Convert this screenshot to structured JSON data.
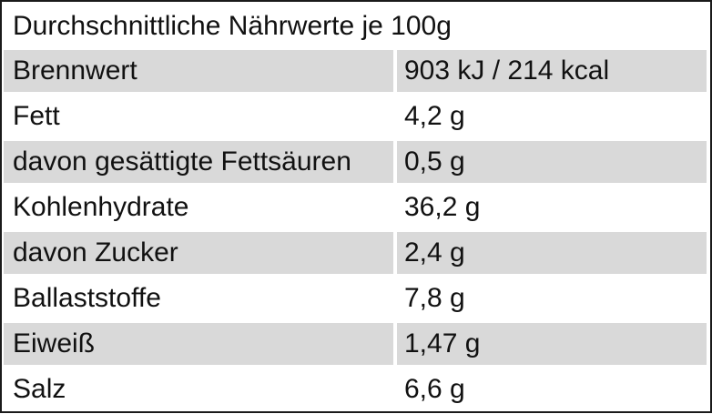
{
  "table": {
    "title": "Durchschnittliche Nährwerte je 100g",
    "rows": [
      {
        "label": "Brennwert",
        "value": "903 kJ / 214 kcal"
      },
      {
        "label": "Fett",
        "value": "4,2 g"
      },
      {
        "label": "davon gesättigte Fettsäuren",
        "value": "0,5 g"
      },
      {
        "label": "Kohlenhydrate",
        "value": "36,2 g"
      },
      {
        "label": "davon Zucker",
        "value": "2,4 g"
      },
      {
        "label": "Ballaststoffe",
        "value": "7,8 g"
      },
      {
        "label": "Eiweiß",
        "value": "1,47 g"
      },
      {
        "label": "Salz",
        "value": "6,6 g"
      }
    ],
    "colors": {
      "shaded_row": "#d9d9d9",
      "plain_row": "#ffffff",
      "border": "#1a1a1a"
    }
  }
}
